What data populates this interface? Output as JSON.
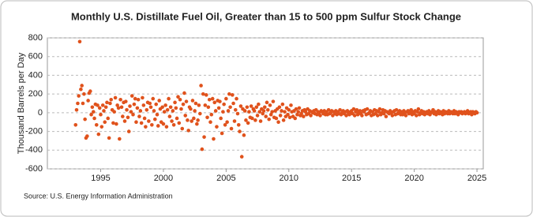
{
  "chart_data": {
    "type": "scatter",
    "title": "Monthly U.S. Distillate Fuel Oil, Greater than 15 to 500 ppm Sulfur Stock Change",
    "y_label": "Thousand Barrels per Day",
    "source": "Source: U.S. Energy Information Administration",
    "color": "#e0521c",
    "grid": true,
    "xlim": [
      1990.75,
      2025.5
    ],
    "xticks": [
      1995,
      2000,
      2005,
      2010,
      2015,
      2020,
      2025
    ],
    "ylim": [
      -600,
      800
    ],
    "yticks": [
      -600,
      -400,
      -200,
      0,
      200,
      400,
      600,
      800
    ],
    "x": [
      1993,
      1993.08,
      1993.17,
      1993.25,
      1993.33,
      1993.42,
      1993.5,
      1993.58,
      1993.67,
      1993.75,
      1993.83,
      1993.92,
      1994,
      1994.08,
      1994.17,
      1994.25,
      1994.33,
      1994.42,
      1994.5,
      1994.58,
      1994.67,
      1994.75,
      1994.83,
      1994.92,
      1995,
      1995.08,
      1995.17,
      1995.25,
      1995.33,
      1995.42,
      1995.5,
      1995.58,
      1995.67,
      1995.75,
      1995.83,
      1995.92,
      1996,
      1996.08,
      1996.17,
      1996.25,
      1996.33,
      1996.42,
      1996.5,
      1996.58,
      1996.67,
      1996.75,
      1996.83,
      1996.92,
      1997,
      1997.08,
      1997.17,
      1997.25,
      1997.33,
      1997.42,
      1997.5,
      1997.58,
      1997.67,
      1997.75,
      1997.83,
      1997.92,
      1998,
      1998.08,
      1998.17,
      1998.25,
      1998.33,
      1998.42,
      1998.5,
      1998.58,
      1998.67,
      1998.75,
      1998.83,
      1998.92,
      1999,
      1999.08,
      1999.17,
      1999.25,
      1999.33,
      1999.42,
      1999.5,
      1999.58,
      1999.67,
      1999.75,
      1999.83,
      1999.92,
      2000,
      2000.08,
      2000.17,
      2000.25,
      2000.33,
      2000.42,
      2000.5,
      2000.58,
      2000.67,
      2000.75,
      2000.83,
      2000.92,
      2001,
      2001.08,
      2001.17,
      2001.25,
      2001.33,
      2001.42,
      2001.5,
      2001.58,
      2001.67,
      2001.75,
      2001.83,
      2001.92,
      2002,
      2002.08,
      2002.17,
      2002.25,
      2002.33,
      2002.42,
      2002.5,
      2002.58,
      2002.67,
      2002.75,
      2002.83,
      2002.92,
      2003,
      2003.08,
      2003.17,
      2003.25,
      2003.33,
      2003.42,
      2003.5,
      2003.58,
      2003.67,
      2003.75,
      2003.83,
      2003.92,
      2004,
      2004.08,
      2004.17,
      2004.25,
      2004.33,
      2004.42,
      2004.5,
      2004.58,
      2004.67,
      2004.75,
      2004.83,
      2004.92,
      2005,
      2005.08,
      2005.17,
      2005.25,
      2005.33,
      2005.42,
      2005.5,
      2005.58,
      2005.67,
      2005.75,
      2005.83,
      2005.92,
      2006,
      2006.08,
      2006.17,
      2006.25,
      2006.33,
      2006.42,
      2006.5,
      2006.58,
      2006.67,
      2006.75,
      2006.83,
      2006.92,
      2007,
      2007.08,
      2007.17,
      2007.25,
      2007.33,
      2007.42,
      2007.5,
      2007.58,
      2007.67,
      2007.75,
      2007.83,
      2007.92,
      2008,
      2008.08,
      2008.17,
      2008.25,
      2008.33,
      2008.42,
      2008.5,
      2008.58,
      2008.67,
      2008.75,
      2008.83,
      2008.92,
      2009,
      2009.08,
      2009.17,
      2009.25,
      2009.33,
      2009.42,
      2009.5,
      2009.58,
      2009.67,
      2009.75,
      2009.83,
      2009.92,
      2010,
      2010.08,
      2010.17,
      2010.25,
      2010.33,
      2010.42,
      2010.5,
      2010.58,
      2010.67,
      2010.75,
      2010.83,
      2010.92,
      2011,
      2011.08,
      2011.17,
      2011.25,
      2011.33,
      2011.42,
      2011.5,
      2011.58,
      2011.67,
      2011.75,
      2011.83,
      2011.92,
      2012,
      2012.08,
      2012.17,
      2012.25,
      2012.33,
      2012.42,
      2012.5,
      2012.58,
      2012.67,
      2012.75,
      2012.83,
      2012.92,
      2013,
      2013.08,
      2013.17,
      2013.25,
      2013.33,
      2013.42,
      2013.5,
      2013.58,
      2013.67,
      2013.75,
      2013.83,
      2013.92,
      2014,
      2014.08,
      2014.17,
      2014.25,
      2014.33,
      2014.42,
      2014.5,
      2014.58,
      2014.67,
      2014.75,
      2014.83,
      2014.92,
      2015,
      2015.08,
      2015.17,
      2015.25,
      2015.33,
      2015.42,
      2015.5,
      2015.58,
      2015.67,
      2015.75,
      2015.83,
      2015.92,
      2016,
      2016.08,
      2016.17,
      2016.25,
      2016.33,
      2016.42,
      2016.5,
      2016.58,
      2016.67,
      2016.75,
      2016.83,
      2016.92,
      2017,
      2017.08,
      2017.17,
      2017.25,
      2017.33,
      2017.42,
      2017.5,
      2017.58,
      2017.67,
      2017.75,
      2017.83,
      2017.92,
      2018,
      2018.08,
      2018.17,
      2018.25,
      2018.33,
      2018.42,
      2018.5,
      2018.58,
      2018.67,
      2018.75,
      2018.83,
      2018.92,
      2019,
      2019.08,
      2019.17,
      2019.25,
      2019.33,
      2019.42,
      2019.5,
      2019.58,
      2019.67,
      2019.75,
      2019.83,
      2019.92,
      2020,
      2020.08,
      2020.17,
      2020.25,
      2020.33,
      2020.42,
      2020.5,
      2020.58,
      2020.67,
      2020.75,
      2020.83,
      2020.92,
      2021,
      2021.08,
      2021.17,
      2021.25,
      2021.33,
      2021.42,
      2021.5,
      2021.58,
      2021.67,
      2021.75,
      2021.83,
      2021.92,
      2022,
      2022.08,
      2022.17,
      2022.25,
      2022.33,
      2022.42,
      2022.5,
      2022.58,
      2022.67,
      2022.75,
      2022.83,
      2022.92,
      2023,
      2023.08,
      2023.17,
      2023.25,
      2023.33,
      2023.42,
      2023.5,
      2023.58,
      2023.67,
      2023.75,
      2023.83,
      2023.92,
      2024,
      2024.08,
      2024.17,
      2024.25,
      2024.33,
      2024.42,
      2024.5,
      2024.58,
      2024.67,
      2024.75,
      2024.83,
      2024.92,
      2025
    ],
    "values": [
      -130,
      30,
      100,
      180,
      760,
      250,
      290,
      100,
      200,
      -70,
      -270,
      -250,
      130,
      210,
      230,
      -20,
      60,
      10,
      -60,
      90,
      -130,
      80,
      -230,
      50,
      -20,
      -150,
      80,
      20,
      -100,
      60,
      110,
      -60,
      -270,
      100,
      140,
      30,
      -110,
      10,
      160,
      -120,
      80,
      50,
      -280,
      140,
      60,
      -40,
      110,
      -90,
      120,
      30,
      -50,
      -200,
      70,
      10,
      180,
      -20,
      90,
      150,
      -100,
      50,
      140,
      -40,
      20,
      -110,
      160,
      80,
      -60,
      -150,
      30,
      110,
      -90,
      100,
      60,
      -130,
      150,
      20,
      -70,
      90,
      -20,
      -140,
      130,
      40,
      -100,
      60,
      -120,
      10,
      80,
      -150,
      30,
      150,
      -40,
      60,
      -90,
      20,
      -130,
      110,
      50,
      -60,
      170,
      -110,
      140,
      40,
      -170,
      90,
      210,
      -30,
      120,
      -80,
      -190,
      60,
      40,
      -90,
      130,
      -60,
      20,
      100,
      -120,
      -80,
      80,
      -10,
      290,
      -390,
      200,
      -260,
      80,
      190,
      -50,
      60,
      140,
      -100,
      -20,
      150,
      -280,
      110,
      20,
      -150,
      130,
      50,
      120,
      -60,
      -220,
      10,
      90,
      -130,
      150,
      -100,
      20,
      200,
      60,
      -170,
      190,
      100,
      -90,
      30,
      150,
      -10,
      -130,
      -200,
      70,
      -470,
      40,
      -240,
      20,
      -80,
      60,
      -110,
      10,
      -50,
      70,
      -60,
      40,
      20,
      -80,
      60,
      -30,
      90,
      10,
      -90,
      40,
      -10,
      20,
      60,
      -40,
      110,
      30,
      -70,
      80,
      -20,
      10,
      120,
      -50,
      20,
      -60,
      40,
      -100,
      60,
      -30,
      20,
      90,
      -80,
      10,
      -40,
      50,
      -20,
      30,
      -50,
      80,
      10,
      -40,
      20,
      -60,
      40,
      -20,
      10,
      50,
      -30,
      -10,
      20,
      -40,
      30,
      10,
      -20,
      40,
      -10,
      20,
      -30,
      10,
      0,
      20,
      -10,
      30,
      -20,
      10,
      0,
      -30,
      20,
      10,
      -10,
      20,
      -20,
      10,
      -20,
      30,
      -10,
      0,
      20,
      -30,
      10,
      -10,
      20,
      -20,
      10,
      -10,
      30,
      -20,
      0,
      20,
      -10,
      10,
      -30,
      20,
      0,
      -20,
      10,
      20,
      -10,
      40,
      -30,
      10,
      30,
      -20,
      0,
      20,
      -10,
      -30,
      20,
      10,
      30,
      -20,
      40,
      -10,
      0,
      20,
      -30,
      10,
      -20,
      30,
      -10,
      20,
      -30,
      10,
      40,
      -20,
      0,
      30,
      -10,
      20,
      -40,
      10,
      0,
      -10,
      20,
      0,
      -30,
      10,
      20,
      -20,
      30,
      -10,
      0,
      20,
      -20,
      10,
      -20,
      20,
      0,
      -30,
      10,
      20,
      -10,
      0,
      30,
      -20,
      10,
      -10,
      20,
      -30,
      10,
      40,
      -20,
      0,
      20,
      -10,
      10,
      -20,
      0,
      10,
      -10,
      20,
      -20,
      0,
      10,
      30,
      -10,
      10,
      -20,
      0,
      20,
      -10,
      10,
      0,
      -20,
      20,
      -10,
      10,
      0,
      -10,
      20,
      -10,
      10,
      0,
      -10,
      20,
      -10,
      10,
      0,
      -20,
      10,
      0,
      10,
      -10,
      0,
      10,
      -10,
      0,
      20,
      -10,
      0,
      10,
      -20,
      10,
      0,
      -10,
      10,
      0
    ]
  }
}
